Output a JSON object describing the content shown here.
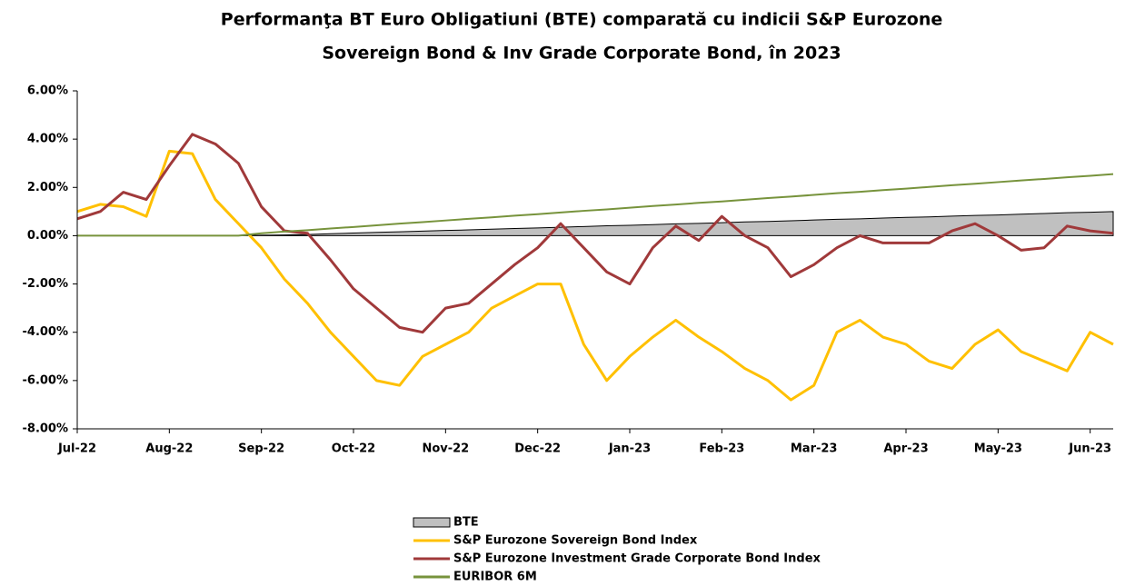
{
  "chart_data": {
    "type": "line",
    "title": [
      "Performanţa BT Euro Obligatiuni (BTE) comparată cu indicii S&P Eurozone",
      "Sovereign Bond & Inv Grade Corporate Bond, în 2023"
    ],
    "categories": [
      "Jul-22",
      null,
      null,
      null,
      "Aug-22",
      null,
      null,
      null,
      "Sep-22",
      null,
      null,
      null,
      "Oct-22",
      null,
      null,
      null,
      "Nov-22",
      null,
      null,
      null,
      "Dec-22",
      null,
      null,
      null,
      "Jan-23",
      null,
      null,
      null,
      "Feb-23",
      null,
      null,
      null,
      "Mar-23",
      null,
      null,
      null,
      "Apr-23",
      null,
      null,
      null,
      "May-23",
      null,
      null,
      null,
      "Jun-23",
      null
    ],
    "ylim": [
      -8,
      6
    ],
    "yticks": [
      {
        "value": -8,
        "label": "-8.00%"
      },
      {
        "value": -6,
        "label": "-6.00%"
      },
      {
        "value": -4,
        "label": "-4.00%"
      },
      {
        "value": -2,
        "label": "-2.00%"
      },
      {
        "value": 0,
        "label": "0.00%"
      },
      {
        "value": 2,
        "label": "2.00%"
      },
      {
        "value": 4,
        "label": "4.00%"
      },
      {
        "value": 6,
        "label": "6.00%"
      }
    ],
    "negative_tick_color": "#e00000",
    "legend": "bottom",
    "series": [
      {
        "name": "BTE",
        "kind": "area",
        "color": "#c0c0c0",
        "values": [
          0,
          0,
          0,
          0,
          0,
          0,
          0,
          0,
          0.02,
          0.03,
          0.05,
          0.08,
          0.11,
          0.14,
          0.16,
          0.19,
          0.22,
          0.24,
          0.27,
          0.3,
          0.32,
          0.35,
          0.38,
          0.41,
          0.43,
          0.46,
          0.49,
          0.51,
          0.54,
          0.57,
          0.59,
          0.62,
          0.65,
          0.68,
          0.7,
          0.73,
          0.76,
          0.78,
          0.81,
          0.84,
          0.86,
          0.89,
          0.92,
          0.95,
          0.97,
          1.0
        ]
      },
      {
        "name": "S&P Eurozone Sovereign Bond Index",
        "kind": "line",
        "color": "#ffc000",
        "values": [
          1.0,
          1.3,
          1.2,
          0.8,
          3.5,
          3.4,
          1.5,
          0.5,
          -0.5,
          -1.8,
          -2.8,
          -4.0,
          -5.0,
          -6.0,
          -6.2,
          -5.0,
          -4.5,
          -4.0,
          -3.0,
          -2.5,
          -2.0,
          -2.0,
          -4.5,
          -6.0,
          -5.0,
          -4.2,
          -3.5,
          -4.2,
          -4.8,
          -5.5,
          -6.0,
          -6.8,
          -6.2,
          -4.0,
          -3.5,
          -4.2,
          -4.5,
          -5.2,
          -5.5,
          -4.5,
          -3.9,
          -4.8,
          -5.2,
          -5.6,
          -4.0,
          -4.5
        ]
      },
      {
        "name": "S&P Eurozone Investment Grade Corporate Bond Index",
        "kind": "line",
        "color": "#a0393a",
        "values": [
          0.7,
          1.0,
          1.8,
          1.5,
          2.9,
          4.2,
          3.8,
          3.0,
          1.2,
          0.2,
          0.1,
          -1.0,
          -2.2,
          -3.0,
          -3.8,
          -4.0,
          -3.0,
          -2.8,
          -2.0,
          -1.2,
          -0.5,
          0.5,
          -0.5,
          -1.5,
          -2.0,
          -0.5,
          0.4,
          -0.2,
          0.8,
          0.0,
          -0.5,
          -1.7,
          -1.2,
          -0.5,
          0.0,
          -0.3,
          -0.3,
          -0.3,
          0.2,
          0.5,
          0.0,
          -0.6,
          -0.5,
          0.4,
          0.2,
          0.1
        ]
      },
      {
        "name": "EURIBOR 6M",
        "kind": "line",
        "color": "#77933c",
        "values": [
          0,
          0,
          0,
          0,
          0,
          0,
          0,
          0,
          0.1,
          0.17,
          0.23,
          0.3,
          0.36,
          0.43,
          0.5,
          0.56,
          0.63,
          0.7,
          0.76,
          0.83,
          0.89,
          0.96,
          1.03,
          1.09,
          1.16,
          1.23,
          1.29,
          1.36,
          1.42,
          1.49,
          1.56,
          1.62,
          1.69,
          1.76,
          1.82,
          1.89,
          1.95,
          2.02,
          2.09,
          2.15,
          2.22,
          2.29,
          2.35,
          2.42,
          2.48,
          2.55
        ]
      }
    ]
  }
}
